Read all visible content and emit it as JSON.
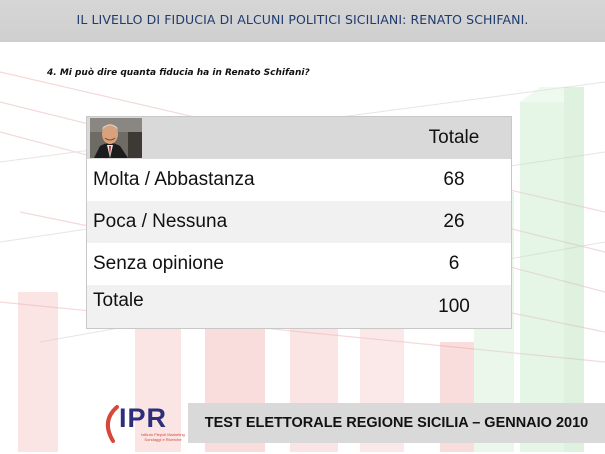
{
  "header": {
    "title": "IL LIVELLO DI FIDUCIA DI ALCUNI POLITICI SICILIANI: RENATO SCHIFANI."
  },
  "question": "4. Mi può dire quanta fiducia ha in  Renato Schifani?",
  "table": {
    "column_header": "Totale",
    "rows": [
      {
        "label": "Molta  / Abbastanza",
        "value": "68"
      },
      {
        "label": "Poca / Nessuna",
        "value": "26"
      },
      {
        "label": "Senza opinione",
        "value": "6"
      },
      {
        "label": "Totale",
        "value": "100"
      }
    ]
  },
  "footer": {
    "text": "TEST ELETTORALE REGIONE SICILIA – GENNAIO 2010",
    "logo_text": "IPR",
    "logo_subtext": "Istituto Piepoli Marketing Sondaggi e Ricerche"
  },
  "colors": {
    "header_band": "#d0d0d0",
    "header_text": "#1f3a6e",
    "logo_blue": "#2e2f7a",
    "logo_red": "#d8483a"
  }
}
